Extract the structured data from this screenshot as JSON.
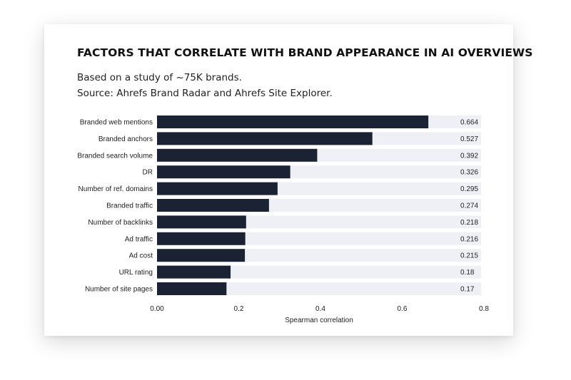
{
  "chart_data": {
    "type": "bar",
    "orientation": "horizontal",
    "title": "FACTORS THAT CORRELATE WITH BRAND APPEARANCE IN AI OVERVIEWS",
    "subtitle_lines": [
      "Based on a study of ~75K brands.",
      "Source: Ahrefs Brand Radar and Ahrefs Site Explorer."
    ],
    "categories": [
      "Branded web mentions",
      "Branded anchors",
      "Branded search volume",
      "DR",
      "Number of ref. domains",
      "Branded traffic",
      "Number of backlinks",
      "Ad traffic",
      "Ad cost",
      "URL rating",
      "Number of site pages"
    ],
    "values": [
      0.664,
      0.527,
      0.392,
      0.326,
      0.295,
      0.274,
      0.218,
      0.216,
      0.215,
      0.18,
      0.17
    ],
    "value_labels": [
      "0.664",
      "0.527",
      "0.392",
      "0.326",
      "0.295",
      "0.274",
      "0.218",
      "0.216",
      "0.215",
      "0.18",
      "0.17"
    ],
    "xlabel": "Spearman correlation",
    "ylabel": "",
    "xlim": [
      0,
      0.8
    ],
    "xticks": [
      0,
      0.2,
      0.4,
      0.6,
      0.8
    ],
    "xtick_labels": [
      "0.00",
      "0.2",
      "0.4",
      "0.6",
      "0.8"
    ],
    "grid": false,
    "colors": {
      "bar": "#1b2233",
      "track": "#eef0f6"
    }
  }
}
